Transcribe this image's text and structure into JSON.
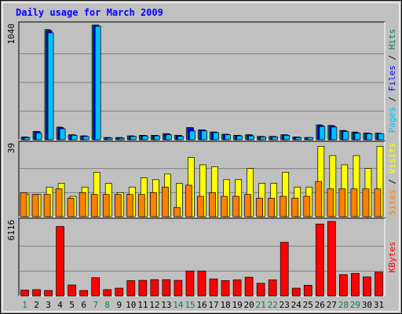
{
  "colors": {
    "background": "#c0c0c0",
    "plot_bg": "#c0c0c0",
    "grid": "#808080",
    "title": "#0000ff",
    "hits": "#00805c",
    "files": "#0000ff",
    "pages": "#00c0ff",
    "visits": "#ffff00",
    "sites": "#ff8000",
    "kbytes": "#ff0000",
    "weekend": "#00805c",
    "weekday": "#000000"
  },
  "chart_data": [
    {
      "type": "bar",
      "title": "Daily usage for March 2009",
      "ymax_label": "1040",
      "ylim": [
        0,
        1040
      ],
      "grid": true,
      "legend_right": [
        "Pages",
        "Files",
        "Hits"
      ],
      "series": [
        {
          "name": "Hits",
          "values": [
            25,
            75,
            1000,
            115,
            45,
            35,
            1040,
            20,
            20,
            35,
            40,
            40,
            55,
            40,
            110,
            90,
            70,
            50,
            40,
            45,
            30,
            30,
            45,
            25,
            20,
            135,
            130,
            85,
            70,
            60,
            60
          ]
        },
        {
          "name": "Files",
          "values": [
            25,
            75,
            990,
            110,
            45,
            35,
            1040,
            20,
            20,
            35,
            40,
            40,
            55,
            40,
            110,
            90,
            70,
            50,
            40,
            45,
            30,
            30,
            45,
            25,
            20,
            130,
            125,
            80,
            65,
            60,
            55
          ]
        },
        {
          "name": "Pages",
          "values": [
            20,
            60,
            970,
            100,
            40,
            30,
            1030,
            15,
            15,
            30,
            35,
            35,
            45,
            30,
            80,
            80,
            65,
            45,
            35,
            35,
            25,
            25,
            40,
            20,
            20,
            120,
            115,
            75,
            60,
            55,
            55
          ]
        }
      ]
    },
    {
      "type": "bar",
      "ymax_label": "39",
      "ylim": [
        0,
        39
      ],
      "grid": true,
      "legend_right": [
        "Sites",
        "Visits"
      ],
      "series": [
        {
          "name": "Visits",
          "values": [
            12,
            12,
            16,
            18,
            11,
            16,
            24,
            18,
            13,
            16,
            21,
            20,
            23,
            18,
            32,
            28,
            27,
            20,
            20,
            26,
            18,
            18,
            24,
            16,
            16,
            38,
            33,
            28,
            33,
            26,
            38
          ]
        },
        {
          "name": "Sites",
          "values": [
            13,
            12,
            12,
            15,
            10,
            13,
            12,
            12,
            12,
            12,
            12,
            13,
            16,
            5,
            17,
            11,
            13,
            11,
            11,
            12,
            10,
            10,
            11,
            10,
            11,
            19,
            15,
            15,
            15,
            15,
            15
          ]
        }
      ]
    },
    {
      "type": "bar",
      "ymax_label": "6116",
      "ylim": [
        0,
        6116
      ],
      "grid": true,
      "legend_right": [
        "KBytes"
      ],
      "series": [
        {
          "name": "KBytes",
          "values": [
            480,
            520,
            450,
            5700,
            900,
            450,
            1500,
            520,
            640,
            1260,
            1280,
            1340,
            1340,
            1280,
            2050,
            2050,
            1400,
            1260,
            1320,
            1540,
            1040,
            1320,
            4400,
            640,
            880,
            5900,
            6116,
            1750,
            1850,
            1560,
            1950
          ]
        }
      ]
    }
  ],
  "x_labels": [
    "1",
    "2",
    "3",
    "4",
    "5",
    "6",
    "7",
    "8",
    "9",
    "10",
    "11",
    "12",
    "13",
    "14",
    "15",
    "16",
    "17",
    "18",
    "19",
    "20",
    "21",
    "22",
    "23",
    "24",
    "25",
    "26",
    "27",
    "28",
    "29",
    "30",
    "31"
  ],
  "weekend_days": [
    1,
    7,
    8,
    14,
    15,
    21,
    22,
    28,
    29
  ]
}
